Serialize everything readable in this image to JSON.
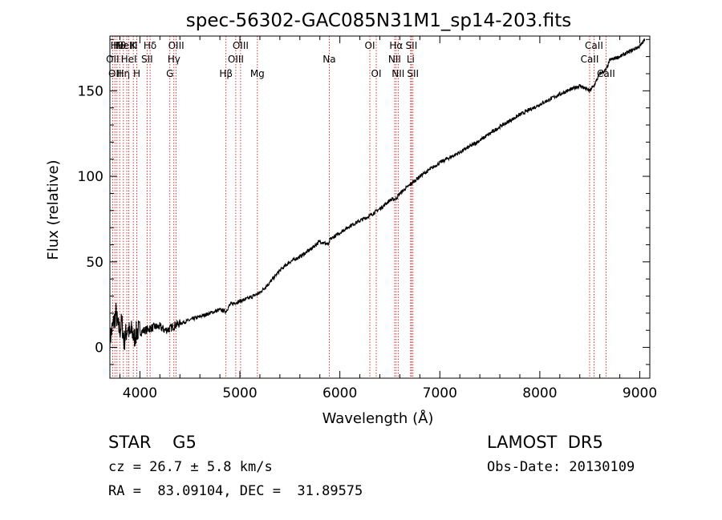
{
  "chart_data": {
    "type": "line",
    "title": "spec-56302-GAC085N31M1_sp14-203.fits",
    "xlabel": "Wavelength (Å)",
    "ylabel": "Flux (relative)",
    "xlim": [
      3700,
      9100
    ],
    "ylim": [
      -18,
      182
    ],
    "xticks": [
      4000,
      5000,
      6000,
      7000,
      8000,
      9000
    ],
    "yticks": [
      0,
      50,
      100,
      150
    ],
    "grid": false,
    "line_color": "#000000",
    "marker_color": "#cc0000",
    "spectrum": {
      "x": [
        3700,
        3720,
        3740,
        3760,
        3780,
        3800,
        3820,
        3840,
        3860,
        3880,
        3900,
        3920,
        3940,
        3960,
        3980,
        4000,
        4050,
        4100,
        4150,
        4200,
        4250,
        4300,
        4350,
        4400,
        4500,
        4600,
        4700,
        4800,
        4861,
        4900,
        5000,
        5100,
        5200,
        5300,
        5400,
        5500,
        5600,
        5700,
        5800,
        5890,
        5900,
        6000,
        6100,
        6200,
        6300,
        6400,
        6500,
        6563,
        6600,
        6700,
        6800,
        6900,
        7000,
        7200,
        7400,
        7600,
        7800,
        8000,
        8200,
        8400,
        8498,
        8542,
        8600,
        8662,
        8700,
        8800,
        8900,
        9000,
        9050
      ],
      "y": [
        5,
        10,
        15,
        20,
        12,
        10,
        15,
        3,
        8,
        12,
        7,
        10,
        5,
        8,
        10,
        9,
        10,
        11,
        12,
        12,
        10,
        11,
        13,
        14,
        16,
        18,
        20,
        22,
        21,
        25,
        27,
        29,
        32,
        38,
        45,
        50,
        53,
        57,
        62,
        60,
        63,
        67,
        71,
        74,
        77,
        81,
        86,
        87,
        90,
        95,
        100,
        104,
        108,
        114,
        121,
        129,
        136,
        142,
        148,
        153,
        150,
        153,
        160,
        162,
        168,
        170,
        173,
        176,
        180
      ]
    },
    "lines": [
      {
        "x": 3727,
        "label": "OII",
        "row": 1
      },
      {
        "x": 3750,
        "label": "OII",
        "row": 2
      },
      {
        "x": 3771,
        "label": "Hθ",
        "row": 0
      },
      {
        "x": 3798,
        "label": "Hθ",
        "row": 0
      },
      {
        "x": 3835,
        "label": "Hη",
        "row": 2
      },
      {
        "x": 3869,
        "label": "NeIII",
        "row": 0
      },
      {
        "x": 3889,
        "label": "HeI",
        "row": 1
      },
      {
        "x": 3934,
        "label": "K",
        "row": 0
      },
      {
        "x": 3969,
        "label": "H",
        "row": 2
      },
      {
        "x": 4072,
        "label": "SII",
        "row": 1
      },
      {
        "x": 4102,
        "label": "Hδ",
        "row": 0
      },
      {
        "x": 4300,
        "label": "G",
        "row": 2
      },
      {
        "x": 4340,
        "label": "Hγ",
        "row": 1
      },
      {
        "x": 4363,
        "label": "OIII",
        "row": 0
      },
      {
        "x": 4861,
        "label": "Hβ",
        "row": 2
      },
      {
        "x": 4959,
        "label": "OIII",
        "row": 1
      },
      {
        "x": 5007,
        "label": "OIII",
        "row": 0
      },
      {
        "x": 5175,
        "label": "Mg",
        "row": 2
      },
      {
        "x": 5894,
        "label": "Na",
        "row": 1
      },
      {
        "x": 6300,
        "label": "OI",
        "row": 0
      },
      {
        "x": 6364,
        "label": "OI",
        "row": 2
      },
      {
        "x": 6548,
        "label": "NII",
        "row": 1
      },
      {
        "x": 6563,
        "label": "Hα",
        "row": 0
      },
      {
        "x": 6583,
        "label": "NII",
        "row": 2
      },
      {
        "x": 6708,
        "label": "Li",
        "row": 1
      },
      {
        "x": 6716,
        "label": "SII",
        "row": 0
      },
      {
        "x": 6731,
        "label": "SII",
        "row": 2
      },
      {
        "x": 8498,
        "label": "CaII",
        "row": 1
      },
      {
        "x": 8542,
        "label": "CaII",
        "row": 0
      },
      {
        "x": 8662,
        "label": "CaII",
        "row": 2
      }
    ]
  },
  "info": {
    "class": "STAR    G5",
    "survey": "LAMOST  DR5",
    "cz": "cz = 26.7 ± 5.8 km/s",
    "obs_date": "Obs-Date: 20130109",
    "coords": "RA =  83.09104, DEC =  31.89575"
  }
}
